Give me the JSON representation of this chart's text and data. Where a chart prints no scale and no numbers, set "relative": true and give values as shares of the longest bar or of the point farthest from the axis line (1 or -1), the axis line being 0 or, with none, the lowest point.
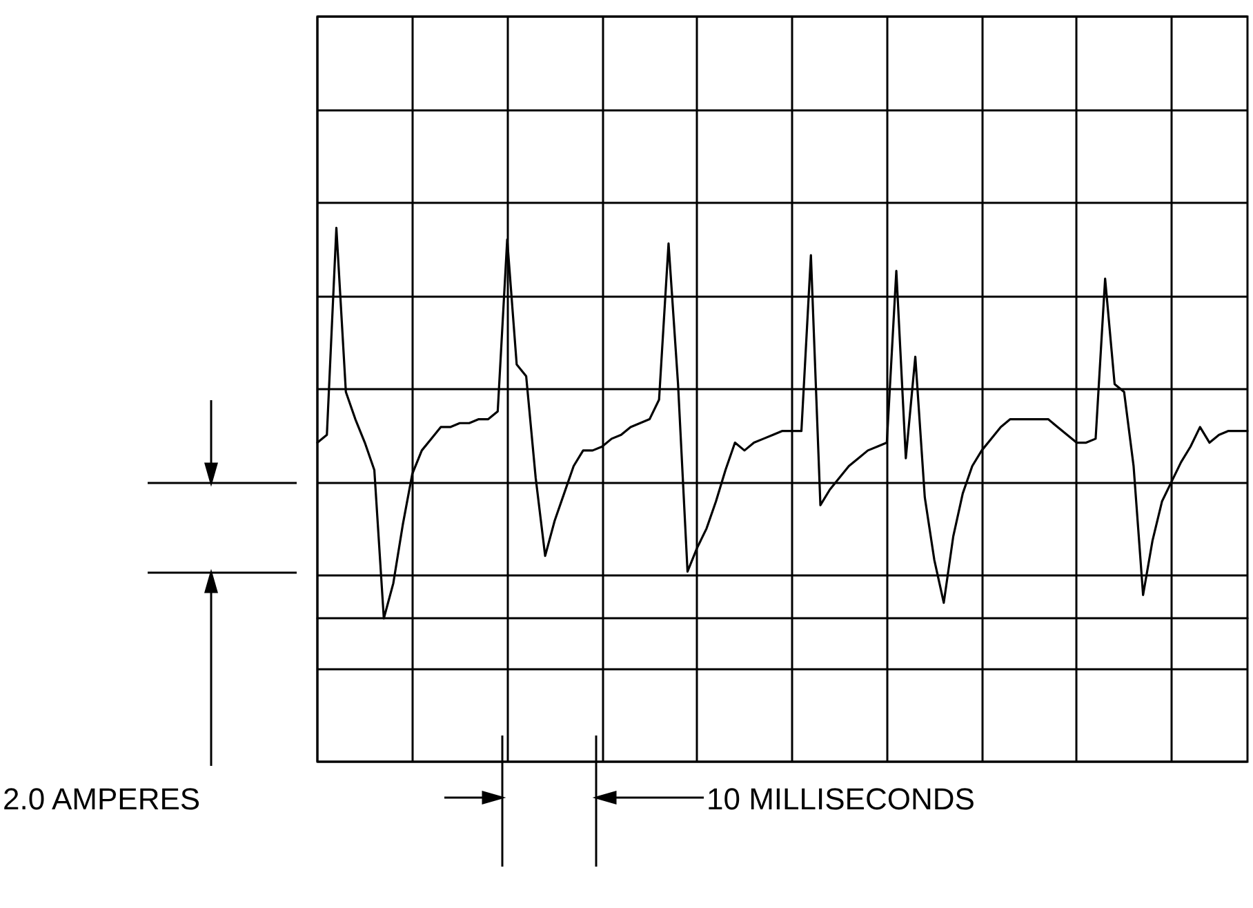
{
  "chart_data": {
    "type": "line",
    "relative": true,
    "grid": true,
    "marker": "none",
    "line_style": "solid",
    "annotations": [
      "2.0 AMPERES",
      "10 MILLISECONDS"
    ],
    "categories": [
      null,
      null,
      null,
      null,
      null,
      null,
      null,
      null,
      null,
      null,
      null,
      null,
      null,
      null,
      null,
      null,
      null,
      null,
      null,
      null,
      null,
      null,
      null,
      null,
      null,
      null,
      null,
      null,
      null,
      null,
      null,
      null,
      null,
      null,
      null,
      null,
      null,
      null,
      null,
      null,
      null,
      null,
      null,
      null,
      null,
      null,
      null,
      null,
      null,
      null,
      null,
      null,
      null,
      null,
      null,
      null,
      null,
      null,
      null,
      null,
      null,
      null,
      null,
      null,
      null,
      null,
      null,
      null,
      null,
      null,
      null,
      null,
      null,
      null,
      null,
      null,
      null,
      null,
      null,
      null,
      null,
      null,
      null,
      null,
      null,
      null,
      null,
      null,
      null,
      null,
      null,
      null,
      null,
      null,
      null,
      null,
      null,
      null,
      null
    ],
    "series": [
      {
        "color": "#000000",
        "values": [
          0.45,
          0.47,
          1.0,
          0.58,
          0.51,
          0.45,
          0.38,
          0.0,
          0.09,
          0.24,
          0.37,
          0.43,
          0.46,
          0.49,
          0.49,
          0.5,
          0.5,
          0.51,
          0.51,
          0.53,
          0.97,
          0.65,
          0.62,
          0.36,
          0.16,
          0.25,
          0.32,
          0.39,
          0.43,
          0.43,
          0.44,
          0.46,
          0.47,
          0.49,
          0.5,
          0.51,
          0.56,
          0.96,
          0.6,
          0.12,
          0.18,
          0.23,
          0.3,
          0.38,
          0.45,
          0.43,
          0.45,
          0.46,
          0.47,
          0.48,
          0.48,
          0.48,
          0.93,
          0.29,
          0.33,
          0.36,
          0.39,
          0.41,
          0.43,
          0.44,
          0.45,
          0.89,
          0.41,
          0.67,
          0.31,
          0.15,
          0.04,
          0.21,
          0.32,
          0.39,
          0.43,
          0.46,
          0.49,
          0.51,
          0.51,
          0.51,
          0.51,
          0.51,
          0.49,
          0.47,
          0.45,
          0.45,
          0.46,
          0.87,
          0.6,
          0.58,
          0.39,
          0.06,
          0.2,
          0.3,
          0.35,
          0.4,
          0.44,
          0.49,
          0.45,
          0.47,
          0.48,
          0.48,
          0.48
        ]
      }
    ]
  }
}
